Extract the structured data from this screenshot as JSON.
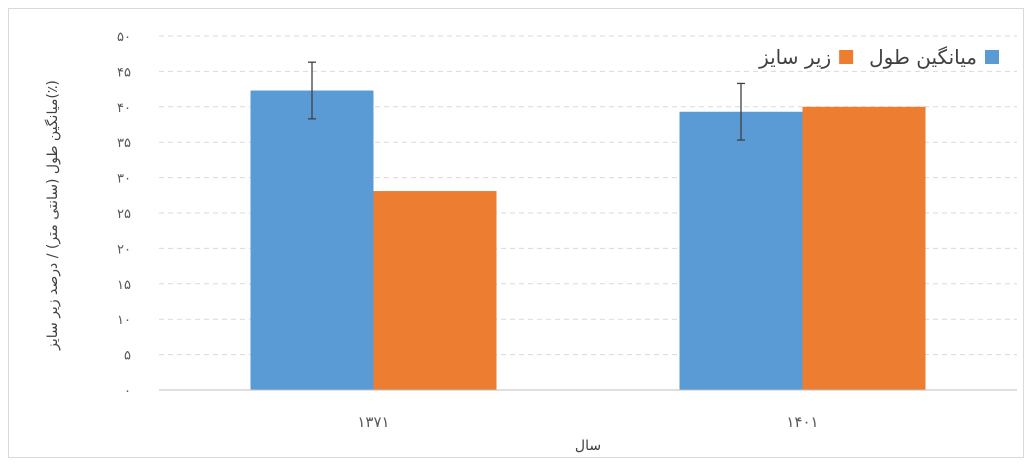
{
  "chart_data": {
    "type": "bar",
    "categories": [
      "۱۳۷۱",
      "۱۴۰۱"
    ],
    "series": [
      {
        "name": "میانگین طول",
        "values": [
          42.3,
          39.3
        ],
        "error": [
          4.0,
          4.0
        ],
        "color": "#5b9bd5"
      },
      {
        "name": "زیر سایز",
        "values": [
          28.1,
          40.0
        ],
        "color": "#ed7d31"
      }
    ],
    "title": "",
    "xlabel": "سال",
    "ylabel": "میانگین طول (سانتی متر)   /   درصد زیر سایز(٪)",
    "ylim": [
      0,
      50
    ],
    "yticks": [
      {
        "value": 0,
        "label": "۰"
      },
      {
        "value": 5,
        "label": "۵"
      },
      {
        "value": 10,
        "label": "۱۰"
      },
      {
        "value": 15,
        "label": "۱۵"
      },
      {
        "value": 20,
        "label": "۲۰"
      },
      {
        "value": 25,
        "label": "۲۵"
      },
      {
        "value": 30,
        "label": "۳۰"
      },
      {
        "value": 35,
        "label": "۳۵"
      },
      {
        "value": 40,
        "label": "۴۰"
      },
      {
        "value": 45,
        "label": "۴۵"
      },
      {
        "value": 50,
        "label": "۵۰"
      }
    ],
    "grid": true,
    "legend_position": "top-right",
    "gridline_color": "#d9d9d9",
    "axis_color": "#bfbfbf"
  }
}
